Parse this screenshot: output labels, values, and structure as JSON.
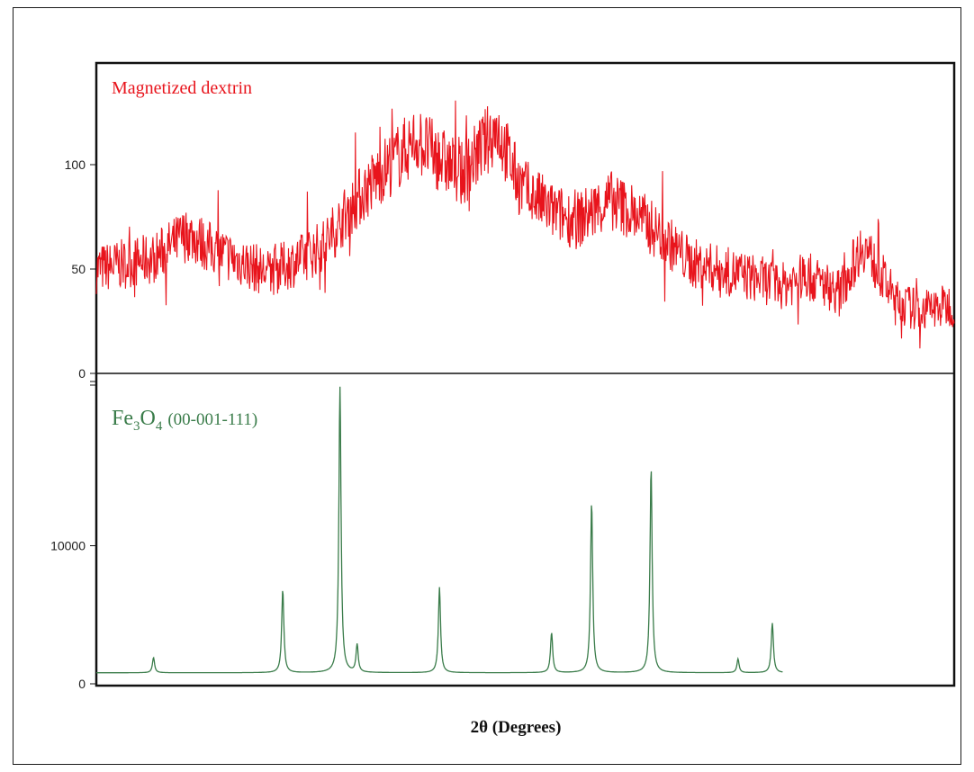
{
  "chart_data": [
    {
      "type": "line",
      "panel": "top",
      "annotation": "Magnetized dextrin",
      "color": "#e8141c",
      "yticks": [
        "0",
        "50",
        "100"
      ],
      "ylim": [
        0,
        145
      ],
      "x": [
        5,
        10,
        13,
        15,
        17,
        20,
        23,
        25,
        27,
        30,
        33,
        35,
        37,
        40,
        42,
        45,
        47,
        50,
        52,
        55,
        57,
        60,
        63,
        65,
        67,
        70,
        72,
        75,
        77,
        80
      ],
      "series": [
        {
          "values": [
            50,
            55,
            67,
            60,
            55,
            48,
            55,
            62,
            78,
            97,
            112,
            103,
            95,
            118,
            90,
            77,
            73,
            83,
            77,
            63,
            53,
            49,
            45,
            42,
            47,
            39,
            62,
            34,
            30,
            33
          ]
        }
      ]
    },
    {
      "type": "line",
      "panel": "bottom",
      "annotation_main": "Fe",
      "annotation_sub1": "3",
      "annotation_mid": "O",
      "annotation_sub2": "4",
      "annotation_ref": "(00-001-111)",
      "color": "#3a7c4a",
      "yticks": [
        "0",
        "10000"
      ],
      "ylim": [
        0,
        22000
      ],
      "baseline": 800,
      "x": [
        10,
        21.3,
        26.3,
        27.8,
        35.0,
        44.8,
        48.3,
        53.5,
        61.1,
        64.1
      ],
      "series": [
        {
          "peaks": [
            1900,
            6800,
            21500,
            2800,
            7000,
            3700,
            13100,
            15600,
            1800,
            4400
          ]
        }
      ]
    },
    {
      "type": "axis",
      "xlabel": "2θ (Degrees)"
    }
  ]
}
